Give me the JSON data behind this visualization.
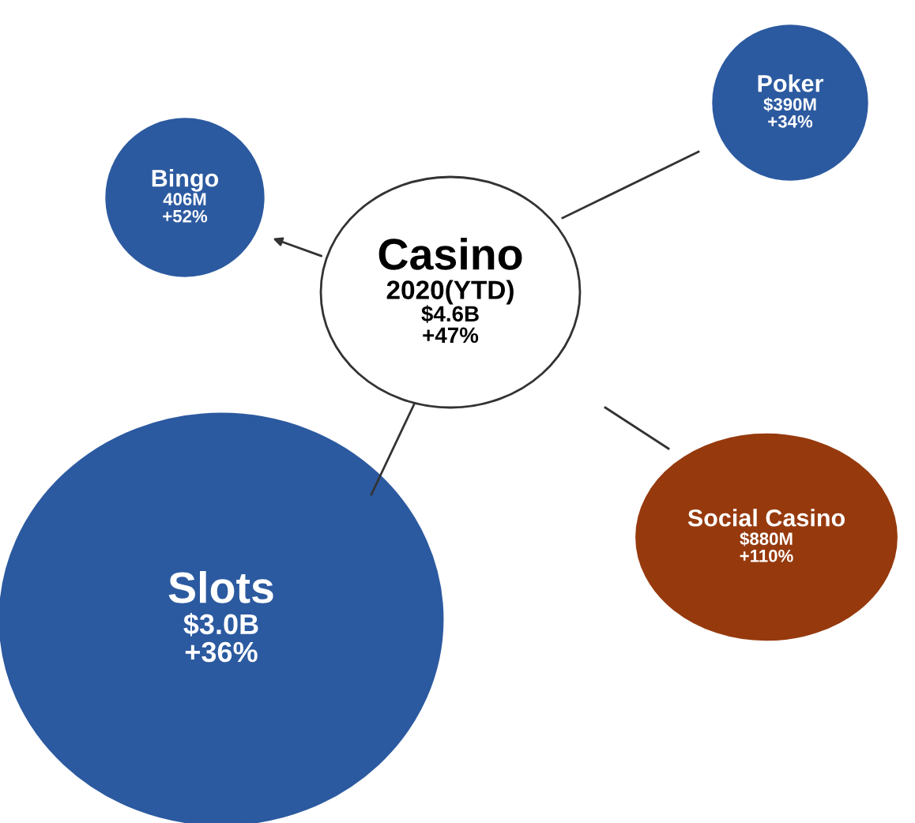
{
  "chart_data": {
    "type": "other",
    "subtitle": "2020(YTD)",
    "categories": [
      "Casino",
      "Bingo",
      "Poker",
      "Social Casino",
      "Slots"
    ],
    "series": [
      {
        "colors": [
          "#ffffff",
          "#2c5aa0",
          "#2c5aa0",
          "#963a0e",
          "#2c5aa0"
        ],
        "values": [
          4.6,
          null,
          null,
          null,
          3.0
        ],
        "value_labels": [
          "$4.6B",
          null,
          null,
          null,
          "$3.0B"
        ]
      },
      {
        "colors": [
          "#ffffff",
          "#2c5aa0",
          "#2c5aa0",
          "#963a0e",
          "#2c5aa0"
        ],
        "values": [
          null,
          406,
          390,
          880,
          null
        ],
        "value_labels": [
          null,
          "406M",
          "$390M",
          "$880M",
          null
        ]
      }
    ],
    "annotations": [
      "+47%",
      "+52%",
      "+34%",
      "+110%",
      "+36%"
    ]
  }
}
